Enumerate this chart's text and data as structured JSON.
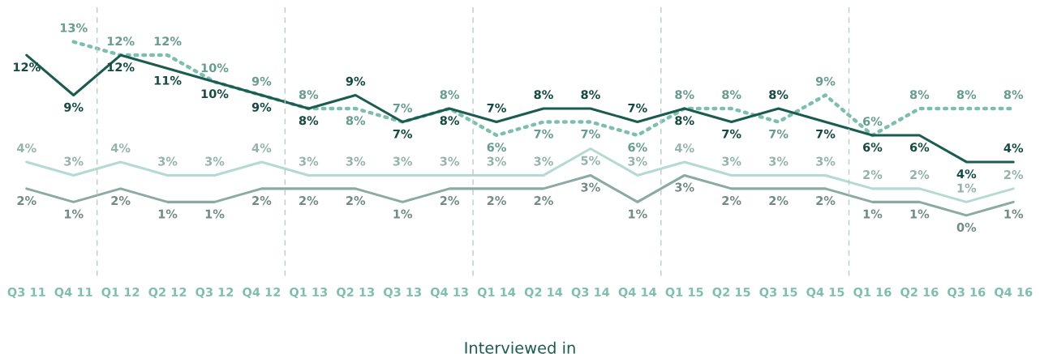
{
  "chart_data": {
    "type": "line",
    "xlabel": "Interviewed in",
    "categories": [
      "Q3 11",
      "Q4 11",
      "Q1 12",
      "Q2 12",
      "Q3 12",
      "Q4 12",
      "Q1 13",
      "Q2 13",
      "Q3 13",
      "Q4 13",
      "Q1 14",
      "Q2 14",
      "Q3 14",
      "Q4 14",
      "Q1 15",
      "Q2 15",
      "Q3 15",
      "Q4 15",
      "Q1 16",
      "Q2 16",
      "Q3 16",
      "Q4 16"
    ],
    "series": [
      {
        "color": "#7dbfae",
        "line_style": "dotted",
        "values": [
          null,
          13,
          12,
          12,
          10,
          9,
          8,
          8,
          7,
          8,
          6,
          7,
          7,
          6,
          8,
          8,
          7,
          9,
          6,
          8,
          8,
          8
        ],
        "value_labels": [
          null,
          "13%",
          "12%",
          "12%",
          "10%",
          "9%",
          "8%",
          "8%",
          "7%",
          "8%",
          "6%",
          "7%",
          "7%",
          "6%",
          "8%",
          "8%",
          "7%",
          "9%",
          "6%",
          "8%",
          "8%",
          "8%"
        ]
      },
      {
        "color": "#1a5c4f",
        "line_style": "solid",
        "values": [
          12,
          9,
          12,
          11,
          10,
          9,
          8,
          9,
          7,
          8,
          7,
          8,
          8,
          7,
          8,
          7,
          8,
          7,
          6,
          6,
          4,
          4
        ],
        "value_labels": [
          "12%",
          "9%",
          "12%",
          "11%",
          "10%",
          "9%",
          "8%",
          "9%",
          "7%",
          "8%",
          "7%",
          "8%",
          "8%",
          "7%",
          "8%",
          "7%",
          "8%",
          "7%",
          "6%",
          "6%",
          "4%",
          "4%"
        ]
      },
      {
        "color": "#b3dbd2",
        "line_style": "solid",
        "values": [
          4,
          3,
          4,
          3,
          3,
          4,
          3,
          3,
          3,
          3,
          3,
          3,
          5,
          3,
          4,
          3,
          3,
          3,
          2,
          2,
          1,
          2
        ],
        "value_labels": [
          "4%",
          "3%",
          "4%",
          "3%",
          "3%",
          "4%",
          "3%",
          "3%",
          "3%",
          "3%",
          "3%",
          "3%",
          "5%",
          "3%",
          "4%",
          "3%",
          "3%",
          "3%",
          "2%",
          "2%",
          "1%",
          "2%"
        ]
      },
      {
        "color": "#8aaba3",
        "line_style": "solid",
        "values": [
          2,
          1,
          2,
          1,
          1,
          2,
          2,
          2,
          1,
          2,
          2,
          2,
          3,
          1,
          3,
          2,
          2,
          2,
          1,
          1,
          0,
          1
        ],
        "value_labels": [
          "2%",
          "1%",
          "2%",
          "1%",
          "1%",
          "2%",
          "2%",
          "2%",
          "1%",
          "2%",
          "2%",
          "2%",
          "3%",
          "1%",
          "3%",
          "2%",
          "2%",
          "2%",
          "1%",
          "1%",
          "0%",
          "1%"
        ]
      }
    ],
    "marker": "none",
    "grid": false,
    "legend": false,
    "tick_labels": "x"
  }
}
